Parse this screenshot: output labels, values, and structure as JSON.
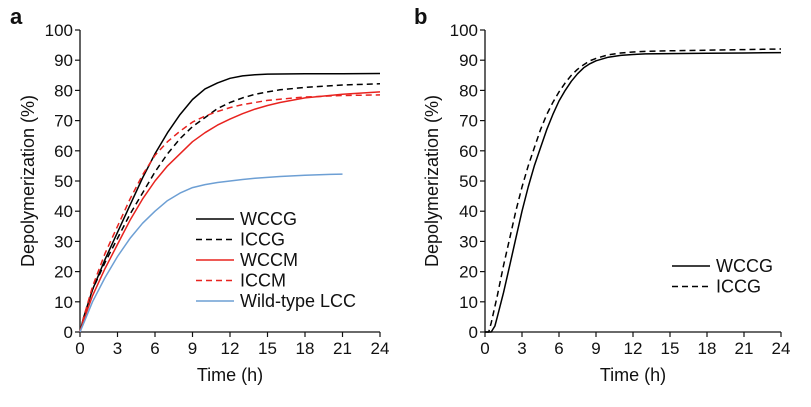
{
  "panels": [
    {
      "letter": "a",
      "chart_data": {
        "type": "line",
        "xlabel": "Time (h)",
        "ylabel": "Depolymerization (%)",
        "xlim": [
          0,
          24
        ],
        "ylim": [
          0,
          100
        ],
        "xticks": [
          0,
          3,
          6,
          9,
          12,
          15,
          18,
          21,
          24
        ],
        "yticks": [
          0,
          10,
          20,
          30,
          40,
          50,
          60,
          70,
          80,
          90,
          100
        ],
        "grid": false,
        "legend_position": "bottom-right",
        "series": [
          {
            "name": "WCCG",
            "color": "#000000",
            "dash": "solid",
            "x": [
              0,
              0.3,
              1,
              2,
              3,
              4,
              5,
              6,
              7,
              8,
              9,
              10,
              11,
              12,
              13,
              14,
              15,
              18,
              21,
              24
            ],
            "y": [
              0,
              5,
              14,
              24,
              33,
              42,
              51,
              59,
              66,
              72,
              77,
              80.5,
              82.5,
              84,
              84.8,
              85.2,
              85.4,
              85.5,
              85.5,
              85.6
            ]
          },
          {
            "name": "ICCG",
            "color": "#000000",
            "dash": "dashed",
            "x": [
              0,
              0.3,
              1,
              2,
              3,
              4,
              5,
              6,
              7,
              8,
              9,
              10,
              11,
              12,
              13,
              14,
              15,
              16,
              18,
              21,
              24
            ],
            "y": [
              0,
              5,
              14,
              23,
              31,
              39,
              46,
              53,
              59,
              64,
              68,
              71,
              74,
              76,
              77.5,
              78.7,
              79.5,
              80.2,
              81,
              81.8,
              82.2
            ]
          },
          {
            "name": "WCCM",
            "color": "#e8231f",
            "dash": "solid",
            "x": [
              0,
              0.3,
              1,
              2,
              3,
              4,
              5,
              6,
              7,
              8,
              9,
              10,
              11,
              12,
              13,
              14,
              15,
              16,
              18,
              21,
              24
            ],
            "y": [
              0,
              4,
              12,
              21,
              29,
              37,
              44,
              50,
              55,
              59,
              63,
              66,
              68.5,
              70.5,
              72.3,
              73.8,
              75,
              76,
              77.5,
              78.7,
              79.5
            ]
          },
          {
            "name": "ICCM",
            "color": "#e8231f",
            "dash": "dashed",
            "x": [
              0,
              0.3,
              1,
              2,
              3,
              4,
              5,
              6,
              7,
              8,
              9,
              10,
              11,
              12,
              13,
              14,
              15,
              16,
              18,
              21,
              24
            ],
            "y": [
              0,
              5,
              15,
              26,
              35,
              44,
              52,
              58.5,
              63,
              66.5,
              69.5,
              71.5,
              73,
              74.3,
              75.3,
              76,
              76.7,
              77.1,
              77.8,
              78.3,
              78.5
            ]
          },
          {
            "name": "Wild-type LCC",
            "color": "#6d9fd4",
            "dash": "solid",
            "x": [
              0,
              0.3,
              1,
              2,
              3,
              4,
              5,
              6,
              7,
              8,
              9,
              10,
              11,
              12,
              13,
              14,
              15,
              16,
              18,
              20,
              21
            ],
            "y": [
              0,
              3,
              10,
              18,
              25,
              31,
              36,
              40,
              43.5,
              46,
              47.8,
              48.8,
              49.5,
              50,
              50.5,
              50.9,
              51.2,
              51.5,
              51.9,
              52.2,
              52.3
            ]
          }
        ]
      }
    },
    {
      "letter": "b",
      "chart_data": {
        "type": "line",
        "xlabel": "Time (h)",
        "ylabel": "Depolymerization (%)",
        "xlim": [
          0,
          24
        ],
        "ylim": [
          0,
          100
        ],
        "xticks": [
          0,
          3,
          6,
          9,
          12,
          15,
          18,
          21,
          24
        ],
        "yticks": [
          0,
          10,
          20,
          30,
          40,
          50,
          60,
          70,
          80,
          90,
          100
        ],
        "grid": false,
        "legend_position": "bottom-right",
        "series": [
          {
            "name": "WCCG",
            "color": "#000000",
            "dash": "solid",
            "x": [
              0,
              0.5,
              0.8,
              1,
              1.5,
              2,
              2.5,
              3,
              3.5,
              4,
              4.5,
              5,
              5.5,
              6,
              6.5,
              7,
              7.5,
              8,
              8.5,
              9,
              10,
              11,
              12,
              13,
              15,
              18,
              21,
              24
            ],
            "y": [
              0,
              0,
              2,
              5,
              13,
              22,
              31,
              40,
              48,
              55,
              61,
              67,
              72,
              76.5,
              80,
              83,
              85.5,
              87.5,
              88.8,
              89.8,
              91,
              91.6,
              91.9,
              92.1,
              92.2,
              92.3,
              92.4,
              92.5
            ]
          },
          {
            "name": "ICCG",
            "color": "#000000",
            "dash": "dashed",
            "x": [
              0,
              0.3,
              0.5,
              1,
              1.5,
              2,
              2.5,
              3,
              3.5,
              4,
              4.5,
              5,
              5.5,
              6,
              6.5,
              7,
              7.5,
              8,
              8.5,
              9,
              10,
              11,
              12,
              13,
              15,
              18,
              21,
              24
            ],
            "y": [
              0,
              0,
              3,
              12,
              22,
              31,
              40,
              48,
              55,
              61,
              67,
              72,
              76,
              79.5,
              82.5,
              85,
              87,
              88.5,
              89.8,
              90.6,
              91.8,
              92.4,
              92.7,
              92.9,
              93.1,
              93.3,
              93.5,
              93.7
            ]
          }
        ]
      }
    }
  ]
}
